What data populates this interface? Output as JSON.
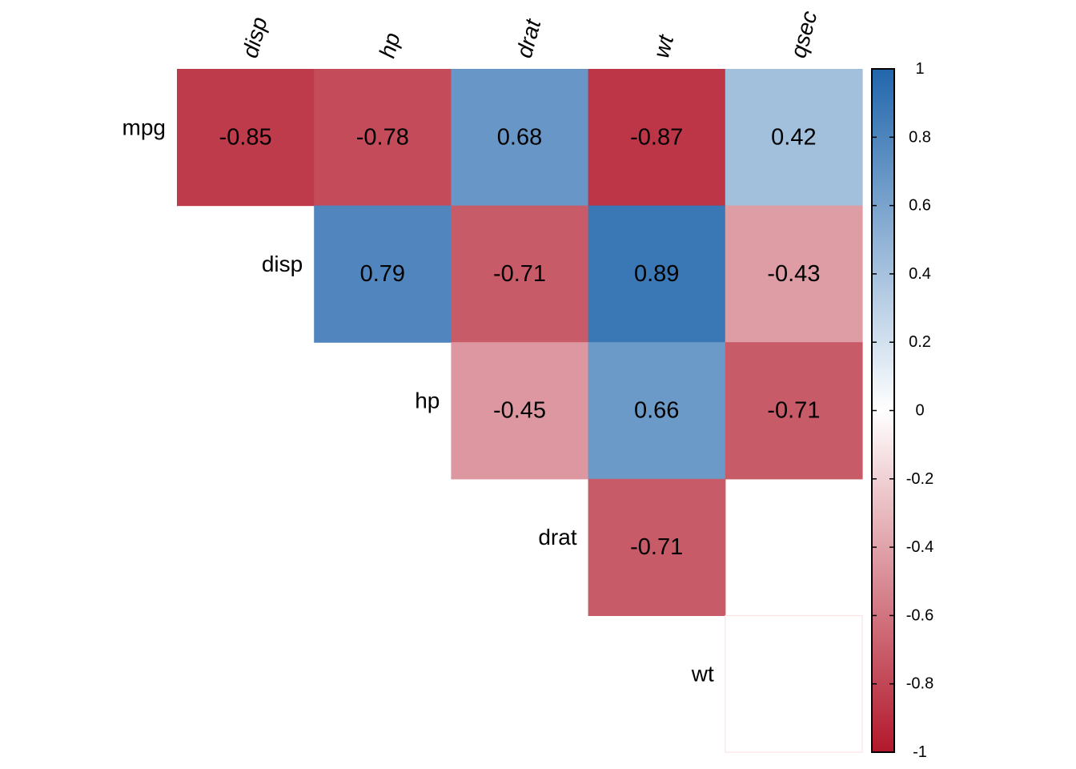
{
  "chart_data": {
    "type": "heatmap",
    "title": "",
    "columns": [
      "disp",
      "hp",
      "drat",
      "wt",
      "qsec"
    ],
    "rows": [
      "mpg",
      "disp",
      "hp",
      "drat",
      "wt"
    ],
    "values": [
      [
        -0.85,
        -0.78,
        0.68,
        -0.87,
        0.42
      ],
      [
        null,
        0.79,
        -0.71,
        0.89,
        -0.43
      ],
      [
        null,
        null,
        -0.45,
        0.66,
        -0.71
      ],
      [
        null,
        null,
        null,
        -0.71,
        null
      ],
      [
        null,
        null,
        null,
        null,
        null
      ]
    ],
    "labels": [
      [
        "-0.85",
        "-0.78",
        "0.68",
        "-0.87",
        "0.42"
      ],
      [
        null,
        "0.79",
        "-0.71",
        "0.89",
        "-0.43"
      ],
      [
        null,
        null,
        "-0.45",
        "0.66",
        "-0.71"
      ],
      [
        null,
        null,
        null,
        "-0.71",
        null
      ],
      [
        null,
        null,
        null,
        null,
        null
      ]
    ],
    "blank_cells": [
      [
        4,
        4
      ]
    ],
    "colorbar": {
      "range": [
        -1,
        1
      ],
      "ticks": [
        1,
        0.8,
        0.6,
        0.4,
        0.2,
        0,
        -0.2,
        -0.4,
        -0.6,
        -0.8,
        -1
      ],
      "tick_labels": [
        "1",
        "0.8",
        "0.6",
        "0.4",
        "0.2",
        "0",
        "-0.2",
        "-0.4",
        "-0.6",
        "-0.8",
        "-1"
      ],
      "colors": {
        "neg": "#B2182B",
        "zero": "#FFFFFF",
        "pos": "#2166AC"
      }
    }
  }
}
